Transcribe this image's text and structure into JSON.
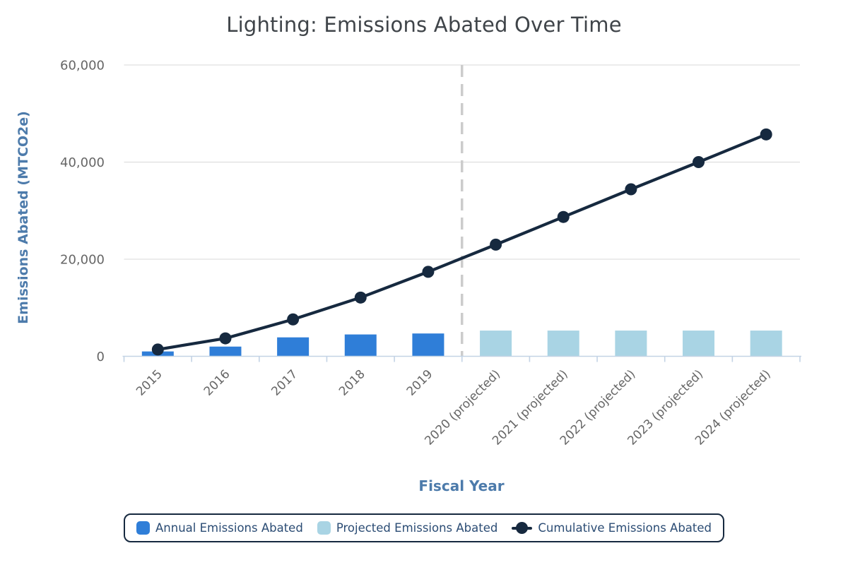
{
  "chart_data": {
    "type": "combo-bar-line",
    "title": "Lighting: Emissions Abated Over Time",
    "xlabel": "Fiscal Year",
    "ylabel": "Emissions Abated (MTCO2e)",
    "categories": [
      "2015",
      "2016",
      "2017",
      "2018",
      "2019",
      "2020 (projected)",
      "2021 (projected)",
      "2022 (projected)",
      "2023 (projected)",
      "2024 (projected)"
    ],
    "series": [
      {
        "name": "Annual Emissions Abated",
        "type": "bar",
        "color": "#2f7ed8",
        "values": [
          1000,
          2000,
          3900,
          4500,
          4700,
          null,
          null,
          null,
          null,
          null
        ]
      },
      {
        "name": "Projected Emissions Abated",
        "type": "bar",
        "color": "#a9d4e4",
        "values": [
          null,
          null,
          null,
          null,
          null,
          5300,
          5300,
          5300,
          5300,
          5300
        ]
      },
      {
        "name": "Cumulative Emissions Abated",
        "type": "line",
        "color": "#16293f",
        "values": [
          1400,
          3700,
          7600,
          12100,
          17400,
          23000,
          28700,
          34400,
          40000,
          45700
        ]
      }
    ],
    "ylim": [
      0,
      60000
    ],
    "y_ticks": [
      0,
      20000,
      40000,
      60000
    ],
    "y_tick_labels": [
      "0",
      "20,000",
      "40,000",
      "60,000"
    ],
    "divider_boundary_index": 5,
    "grid": true,
    "legend_position": "bottom",
    "colors": {
      "grid": "#d8d8d8",
      "axis": "#c3d3e5",
      "tick_text": "#666666",
      "divider": "#cccccc",
      "title": "#3f4449",
      "axis_title": "#4d7bab",
      "legend_text": "#2b4c74",
      "legend_border": "#16293f"
    }
  }
}
